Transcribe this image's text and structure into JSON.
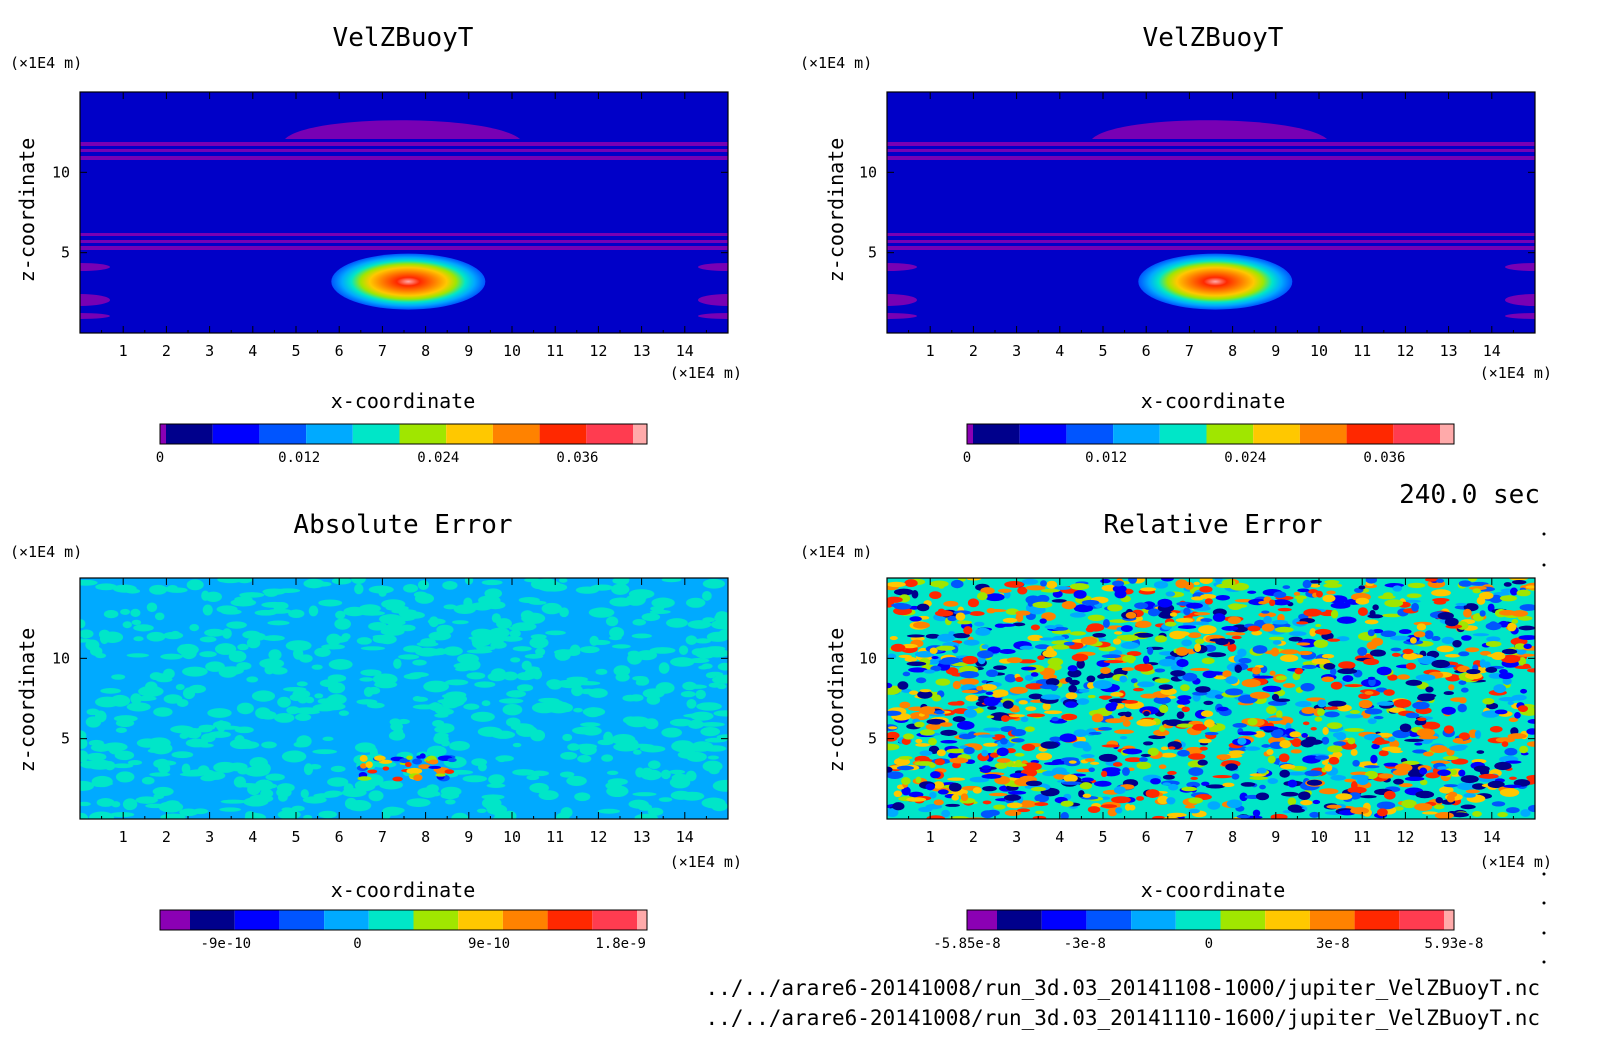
{
  "chart_data": [
    {
      "type": "heatmap",
      "title": "VelZBuoyT",
      "xlabel": "x-coordinate",
      "ylabel": "z-coordinate",
      "x_unit": "(×1E4 m)",
      "y_unit": "(×1E4 m)",
      "xlim": [
        0,
        15
      ],
      "ylim": [
        0,
        15
      ],
      "x_ticks": [
        "1",
        "2",
        "3",
        "4",
        "5",
        "6",
        "7",
        "8",
        "9",
        "10",
        "11",
        "12",
        "13",
        "14"
      ],
      "y_ticks": [
        "5",
        "10"
      ],
      "field": "bubble",
      "blob_center": [
        7.6,
        3.2
      ],
      "colorbar": {
        "range": [
          0,
          0.042
        ],
        "tick_labels": [
          "0",
          "0.012",
          "0.024",
          "0.036"
        ],
        "tick_values": [
          0,
          0.012,
          0.024,
          0.036
        ]
      }
    },
    {
      "type": "heatmap",
      "title": "VelZBuoyT",
      "xlabel": "x-coordinate",
      "ylabel": "z-coordinate",
      "x_unit": "(×1E4 m)",
      "y_unit": "(×1E4 m)",
      "xlim": [
        0,
        15
      ],
      "ylim": [
        0,
        15
      ],
      "x_ticks": [
        "1",
        "2",
        "3",
        "4",
        "5",
        "6",
        "7",
        "8",
        "9",
        "10",
        "11",
        "12",
        "13",
        "14"
      ],
      "y_ticks": [
        "5",
        "10"
      ],
      "field": "bubble",
      "blob_center": [
        7.6,
        3.2
      ],
      "colorbar": {
        "range": [
          0,
          0.042
        ],
        "tick_labels": [
          "0",
          "0.012",
          "0.024",
          "0.036"
        ],
        "tick_values": [
          0,
          0.012,
          0.024,
          0.036
        ]
      }
    },
    {
      "type": "heatmap",
      "title": "Absolute Error",
      "xlabel": "x-coordinate",
      "ylabel": "z-coordinate",
      "x_unit": "(×1E4 m)",
      "y_unit": "(×1E4 m)",
      "xlim": [
        0,
        15
      ],
      "ylim": [
        0,
        15
      ],
      "x_ticks": [
        "1",
        "2",
        "3",
        "4",
        "5",
        "6",
        "7",
        "8",
        "9",
        "10",
        "11",
        "12",
        "13",
        "14"
      ],
      "y_ticks": [
        "5",
        "10"
      ],
      "field": "abs_error",
      "blob_center": [
        7.6,
        3.2
      ],
      "colorbar": {
        "range": [
          -1.35e-09,
          1.98e-09
        ],
        "tick_labels": [
          "-9e-10",
          "0",
          "9e-10",
          "1.8e-9"
        ],
        "tick_values": [
          -9e-10,
          0,
          9e-10,
          1.8e-09
        ]
      }
    },
    {
      "type": "heatmap",
      "title": "Relative Error",
      "xlabel": "x-coordinate",
      "ylabel": "z-coordinate",
      "x_unit": "(×1E4 m)",
      "y_unit": "(×1E4 m)",
      "xlim": [
        0,
        15
      ],
      "ylim": [
        0,
        15
      ],
      "x_ticks": [
        "1",
        "2",
        "3",
        "4",
        "5",
        "6",
        "7",
        "8",
        "9",
        "10",
        "11",
        "12",
        "13",
        "14"
      ],
      "y_ticks": [
        "5",
        "10"
      ],
      "field": "rel_error",
      "colorbar": {
        "range": [
          -5.85e-08,
          5.93e-08
        ],
        "tick_labels": [
          "-5.85e-8",
          "-3e-8",
          "0",
          "3e-8",
          "5.93e-8"
        ],
        "tick_values": [
          -5.85e-08,
          -3e-08,
          0,
          3e-08,
          5.93e-08
        ]
      }
    }
  ],
  "colors": {
    "palette": [
      "#8b00b4",
      "#00008c",
      "#0000ff",
      "#0055ff",
      "#00aaff",
      "#00e6c8",
      "#a0e600",
      "#ffc800",
      "#ff8200",
      "#ff2800",
      "#ff3c50",
      "#ffaaaa"
    ],
    "background": "#0000c8",
    "stripe": "#7800b4"
  },
  "time_label": "240.0 sec",
  "files": [
    "../../arare6-20141008/run_3d.03_20141108-1000/jupiter_VelZBuoyT.nc",
    "../../arare6-20141008/run_3d.03_20141110-1600/jupiter_VelZBuoyT.nc"
  ]
}
